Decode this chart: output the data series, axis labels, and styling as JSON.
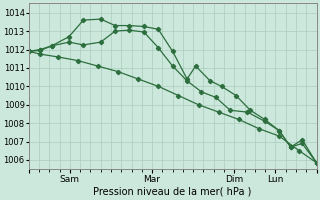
{
  "background_color": "#cce8dc",
  "grid_color": "#aaccbb",
  "line_color": "#2d6e3e",
  "xlabel": "Pression niveau de la mer( hPa )",
  "ylim": [
    1005.5,
    1014.5
  ],
  "yticks": [
    1006,
    1007,
    1008,
    1009,
    1010,
    1011,
    1012,
    1013,
    1014
  ],
  "xtick_labels": [
    "",
    "Sam",
    "",
    "Mar",
    "",
    "Dim",
    "",
    "Lun"
  ],
  "series1_x": [
    0,
    0.04,
    0.1,
    0.17,
    0.24,
    0.31,
    0.38,
    0.45,
    0.52,
    0.59,
    0.66,
    0.73,
    0.8,
    0.87,
    0.94,
    1.0
  ],
  "series1_y": [
    1011.9,
    1011.75,
    1011.6,
    1011.4,
    1011.1,
    1010.8,
    1010.4,
    1010.0,
    1009.5,
    1009.0,
    1008.6,
    1008.2,
    1007.7,
    1007.3,
    1006.5,
    1005.85
  ],
  "series2_x": [
    0,
    0.04,
    0.08,
    0.14,
    0.19,
    0.25,
    0.3,
    0.35,
    0.4,
    0.45,
    0.5,
    0.55,
    0.58,
    0.63,
    0.67,
    0.72,
    0.77,
    0.82,
    0.87,
    0.91,
    0.95,
    1.0
  ],
  "series2_y": [
    1011.9,
    1011.95,
    1012.2,
    1012.7,
    1013.6,
    1013.65,
    1013.3,
    1013.3,
    1013.25,
    1013.1,
    1011.9,
    1010.4,
    1011.1,
    1010.3,
    1010.0,
    1009.5,
    1008.7,
    1008.2,
    1007.6,
    1006.7,
    1007.1,
    1005.85
  ],
  "series3_x": [
    0,
    0.04,
    0.08,
    0.14,
    0.19,
    0.25,
    0.3,
    0.35,
    0.4,
    0.45,
    0.5,
    0.55,
    0.6,
    0.65,
    0.7,
    0.76,
    0.82,
    0.87,
    0.91,
    0.95,
    1.0
  ],
  "series3_y": [
    1011.9,
    1012.0,
    1012.2,
    1012.4,
    1012.25,
    1012.4,
    1013.0,
    1013.05,
    1012.95,
    1012.1,
    1011.1,
    1010.3,
    1009.7,
    1009.4,
    1008.7,
    1008.6,
    1008.1,
    1007.6,
    1006.7,
    1006.9,
    1005.85
  ],
  "x_min": 0,
  "x_max": 1
}
